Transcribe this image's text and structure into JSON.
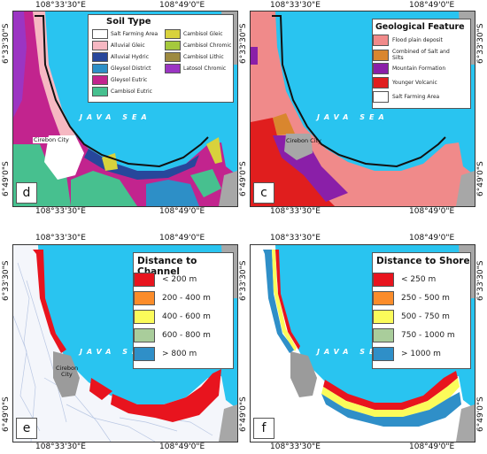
{
  "coords": {
    "lon_left": "108°33'30\"E",
    "lon_right": "108°49'0\"E",
    "lat_top": "6°33'30\"S",
    "lat_bottom": "6°49'0\"S"
  },
  "sea_label": "JAVA SEA",
  "city_label_top": "Cirebon City",
  "city_label_bottom_line1": "Cirebon",
  "city_label_bottom_line2": "City",
  "panels": {
    "d": {
      "label": "d"
    },
    "c": {
      "label": "c"
    },
    "e": {
      "label": "e"
    },
    "f": {
      "label": "f"
    }
  },
  "soil_legend": {
    "title": "Soil Type",
    "items": [
      {
        "label": "Salt Farming Area",
        "color": "#ffffff"
      },
      {
        "label": "Alluvial Gleic",
        "color": "#f6b8c2"
      },
      {
        "label": "Alluvial Hydric",
        "color": "#27479b"
      },
      {
        "label": "Gleysol District",
        "color": "#2d8fc7"
      },
      {
        "label": "Gleysol Eutric",
        "color": "#c2248e"
      },
      {
        "label": "Cambisol Eutric",
        "color": "#47c08f"
      },
      {
        "label": "Cambisol Gleic",
        "color": "#d8d23c"
      },
      {
        "label": "Cambisol Chromic",
        "color": "#a5c93c"
      },
      {
        "label": "Cambisol Lithic",
        "color": "#9d8a40"
      },
      {
        "label": "Latosol Chromic",
        "color": "#9b35c3"
      }
    ]
  },
  "geo_legend": {
    "title": "Geological Feature",
    "items": [
      {
        "label": "Flood plain deposit",
        "color": "#f08a8a"
      },
      {
        "label": "Combined of Salt and Silts",
        "color": "#d9862e"
      },
      {
        "label": "Mountain Formation",
        "color": "#8a1fa8"
      },
      {
        "label": "Younger Volcanic",
        "color": "#e01e1e"
      },
      {
        "label": "Salt Farming Area",
        "color": "#ffffff"
      }
    ]
  },
  "channel_legend": {
    "title": "Distance to Channel",
    "items": [
      {
        "label": "< 200 m",
        "color": "#e8141e"
      },
      {
        "label": "200 - 400 m",
        "color": "#fb8c2a"
      },
      {
        "label": "400 - 600 m",
        "color": "#fbfb5a"
      },
      {
        "label": "600 - 800 m",
        "color": "#a9cd9b"
      },
      {
        "label": "> 800 m",
        "color": "#2f8fc8"
      }
    ]
  },
  "shore_legend": {
    "title": "Distance to Shore",
    "items": [
      {
        "label": "< 250 m",
        "color": "#e8141e"
      },
      {
        "label": "250 - 500 m",
        "color": "#fb8c2a"
      },
      {
        "label": "500 - 750 m",
        "color": "#fbfb5a"
      },
      {
        "label": "750 - 1000 m",
        "color": "#a9cd9b"
      },
      {
        "label": "> 1000 m",
        "color": "#2f8fc8"
      }
    ]
  },
  "colors": {
    "sea": "#29c4f0",
    "land_grey": "#a7a7a7",
    "city_grey": "#9b9b9b"
  }
}
